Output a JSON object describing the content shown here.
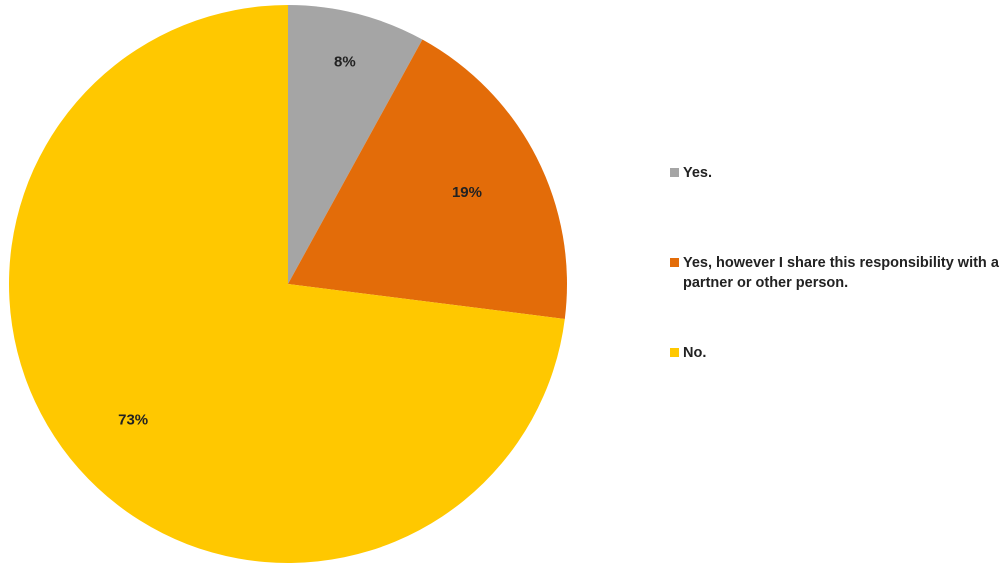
{
  "chart_data": {
    "type": "pie",
    "title": "",
    "slices": [
      {
        "name": "Yes.",
        "value": 8,
        "label": "8%",
        "color": "#a5a5a5"
      },
      {
        "name": "Yes, however I share this responsibility with a partner or other person.",
        "value": 19,
        "label": "19%",
        "color": "#e36c09"
      },
      {
        "name": "No.",
        "value": 73,
        "label": "73%",
        "color": "#ffc800"
      }
    ],
    "start": "12 o'clock",
    "direction": "clockwise",
    "legend_position": "right"
  }
}
